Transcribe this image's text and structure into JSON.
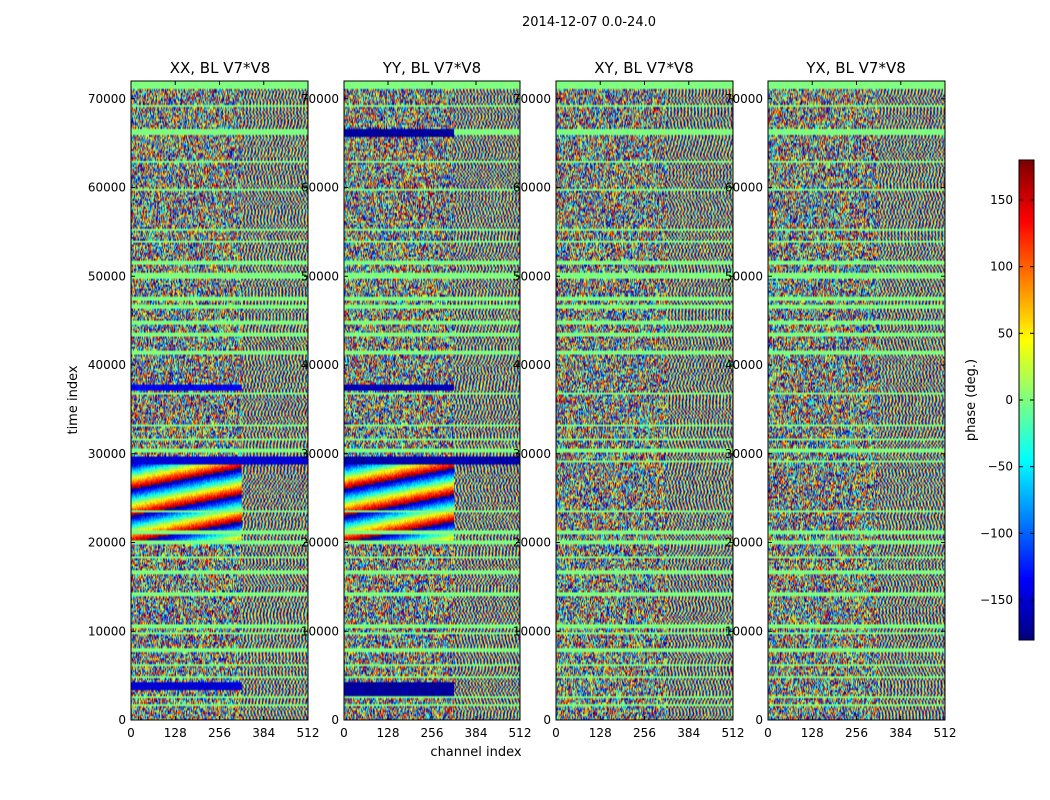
{
  "chart_data": {
    "type": "heatmap",
    "suptitle": "2014-12-07 0.0-24.0",
    "xlabel": "channel index",
    "ylabel": "time index",
    "xlim": [
      0,
      512
    ],
    "ylim": [
      0,
      72000
    ],
    "x_ticks": [
      0,
      128,
      256,
      384,
      512
    ],
    "x_tick_labels": [
      "0",
      "128",
      "256",
      "384",
      "512"
    ],
    "y_ticks": [
      0,
      10000,
      20000,
      30000,
      40000,
      50000,
      60000,
      70000
    ],
    "y_tick_labels": [
      "0",
      "10000",
      "20000",
      "30000",
      "40000",
      "50000",
      "60000",
      "70000"
    ],
    "panels": [
      {
        "title": "XX, BL V7*V8"
      },
      {
        "title": "YY, BL V7*V8"
      },
      {
        "title": "XY, BL V7*V8"
      },
      {
        "title": "YX, BL V7*V8"
      }
    ],
    "colorbar": {
      "label": "phase (deg.)",
      "range": [
        -180,
        180
      ],
      "ticks": [
        150,
        100,
        50,
        0,
        -50,
        -100,
        -150
      ],
      "tick_labels": [
        "150",
        "100",
        "50",
        "0",
        "−50",
        "−100",
        "−150"
      ],
      "colormap": "jet"
    },
    "flagged_value_deg": 0,
    "flagged_time_bands": [
      [
        71200,
        72000
      ],
      [
        69100,
        69400
      ],
      [
        66000,
        66500
      ],
      [
        62700,
        63100
      ],
      [
        59600,
        59800
      ],
      [
        55100,
        55400
      ],
      [
        53700,
        54000
      ],
      [
        51200,
        51700
      ],
      [
        49800,
        50300
      ],
      [
        47200,
        47600
      ],
      [
        46300,
        46700
      ],
      [
        44600,
        45000
      ],
      [
        43200,
        43600
      ],
      [
        41200,
        41600
      ],
      [
        36600,
        37000
      ],
      [
        33100,
        33400
      ],
      [
        31500,
        31800
      ],
      [
        30200,
        30500
      ],
      [
        29100,
        29300
      ],
      [
        25100,
        25300
      ],
      [
        23400,
        23700
      ],
      [
        21000,
        21300
      ],
      [
        19800,
        20200
      ],
      [
        18200,
        18500
      ],
      [
        16500,
        16800
      ],
      [
        14000,
        14300
      ],
      [
        10400,
        10800
      ],
      [
        9700,
        10000
      ],
      [
        7700,
        8000
      ],
      [
        6000,
        6300
      ],
      [
        4700,
        5000
      ],
      [
        2500,
        2800
      ],
      [
        1600,
        1800
      ]
    ],
    "high_channel_fringe_start": 320,
    "strong_fringe_time_range": [
      20000,
      29000
    ],
    "strong_fringe_panels": [
      0,
      1
    ],
    "solid_rows": [
      {
        "panel": 0,
        "t": [
          37100,
          37900
        ],
        "ch": [
          0,
          320
        ],
        "deg": -140
      },
      {
        "panel": 1,
        "t": [
          37100,
          37900
        ],
        "ch": [
          0,
          320
        ],
        "deg": -160
      },
      {
        "panel": 0,
        "t": [
          3300,
          4200
        ],
        "ch": [
          0,
          320
        ],
        "deg": -150
      },
      {
        "panel": 1,
        "t": [
          2800,
          4300
        ],
        "ch": [
          0,
          320
        ],
        "deg": -170
      },
      {
        "panel": 0,
        "t": [
          28900,
          29600
        ],
        "ch": [
          0,
          512
        ],
        "deg": -150
      },
      {
        "panel": 1,
        "t": [
          28900,
          29600
        ],
        "ch": [
          0,
          512
        ],
        "deg": -165
      },
      {
        "panel": 1,
        "t": [
          65800,
          66500
        ],
        "ch": [
          0,
          320
        ],
        "deg": -170
      }
    ]
  }
}
